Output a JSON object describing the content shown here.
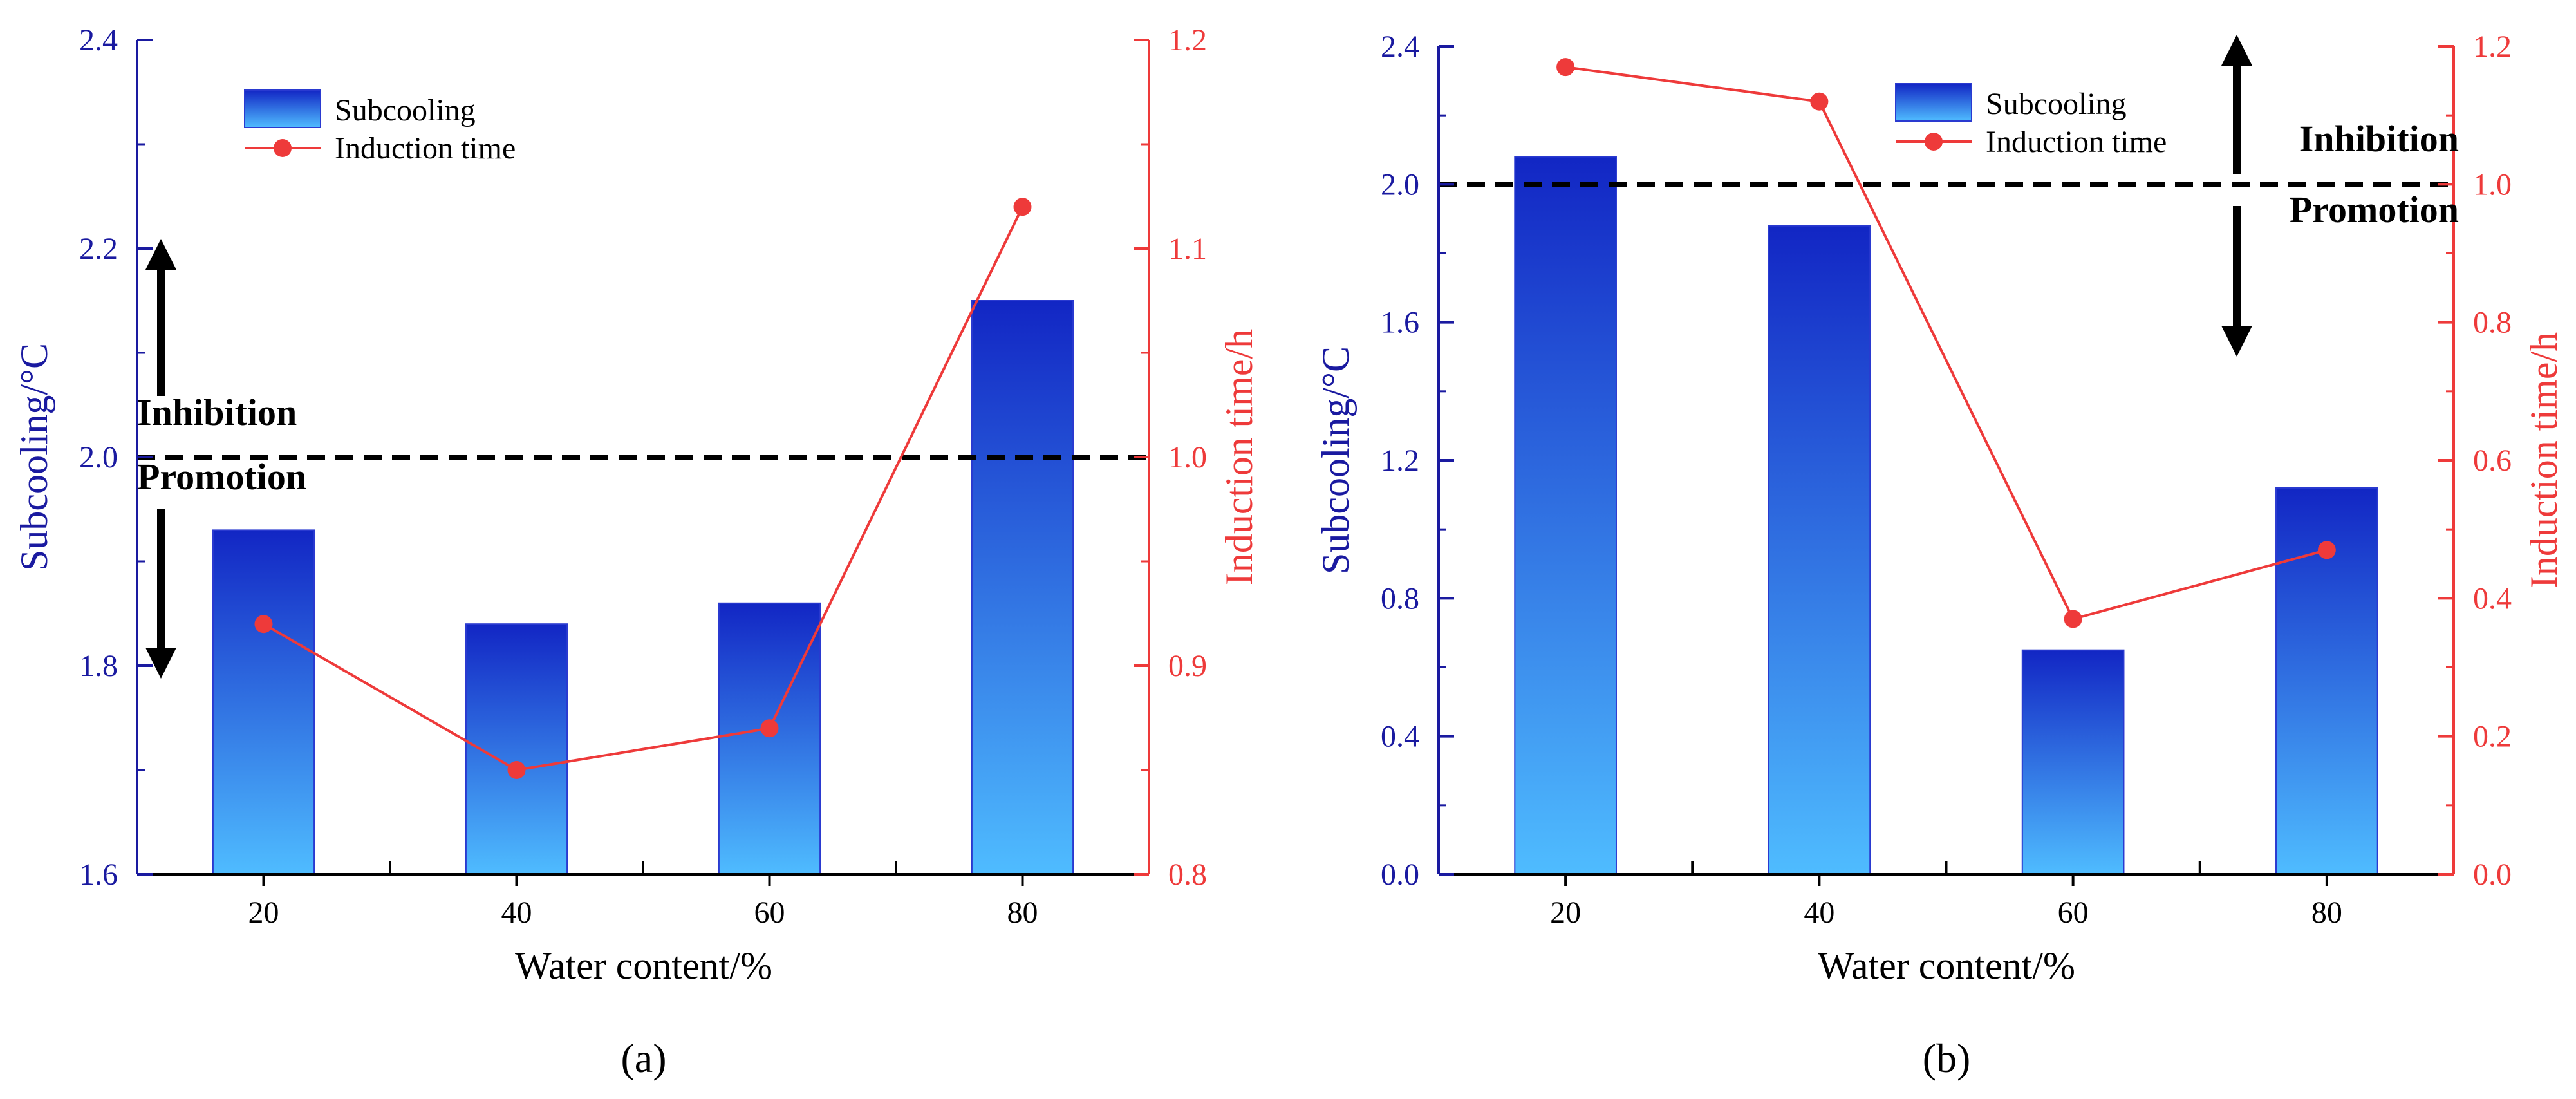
{
  "colors": {
    "left_axis": "#1a1aa0",
    "right_axis": "#ee3a3a",
    "bar_top": "#1226c4",
    "bar_bottom": "#4fbcff",
    "line": "#ee3a3a",
    "threshold": "#000000"
  },
  "chart_data": [
    {
      "type": "bar+line",
      "panel_label": "(a)",
      "categories": [
        "20",
        "40",
        "60",
        "80"
      ],
      "xlabel": "Water content/%",
      "ylabel_left": "Subcooling/°C",
      "ylabel_right": "Induction time/h",
      "ylim_left": [
        1.6,
        2.4
      ],
      "ylim_right": [
        0.8,
        1.2
      ],
      "yticks_left": [
        "1.6",
        "1.8",
        "2.0",
        "2.2",
        "2.4"
      ],
      "yticks_right": [
        "0.8",
        "0.9",
        "1.0",
        "1.1",
        "1.2"
      ],
      "series": [
        {
          "name": "Subcooling",
          "kind": "bar",
          "axis": "left",
          "values": [
            1.93,
            1.84,
            1.86,
            2.15
          ]
        },
        {
          "name": "Induction time",
          "kind": "line",
          "axis": "right",
          "values": [
            0.92,
            0.85,
            0.87,
            1.12
          ]
        }
      ],
      "threshold": 2.0,
      "annotations": {
        "above": "Inhibition",
        "below": "Promotion"
      },
      "legend": [
        "Subcooling",
        "Induction time"
      ]
    },
    {
      "type": "bar+line",
      "panel_label": "(b)",
      "categories": [
        "20",
        "40",
        "60",
        "80"
      ],
      "xlabel": "Water content/%",
      "ylabel_left": "Subcooling/°C",
      "ylabel_right": "Induction time/h",
      "ylim_left": [
        0.0,
        2.4
      ],
      "ylim_right": [
        0.0,
        1.2
      ],
      "yticks_left": [
        "0.0",
        "0.4",
        "0.8",
        "1.2",
        "1.6",
        "2.0",
        "2.4"
      ],
      "yticks_right": [
        "0.0",
        "0.2",
        "0.4",
        "0.6",
        "0.8",
        "1.0",
        "1.2"
      ],
      "series": [
        {
          "name": "Subcooling",
          "kind": "bar",
          "axis": "left",
          "values": [
            2.08,
            1.88,
            0.65,
            1.12
          ]
        },
        {
          "name": "Induction time",
          "kind": "line",
          "axis": "right",
          "values": [
            1.17,
            1.12,
            0.37,
            0.47
          ]
        }
      ],
      "threshold": 2.0,
      "annotations": {
        "above": "Inhibition",
        "below": "Promotion"
      },
      "legend": [
        "Subcooling",
        "Induction time"
      ]
    }
  ]
}
